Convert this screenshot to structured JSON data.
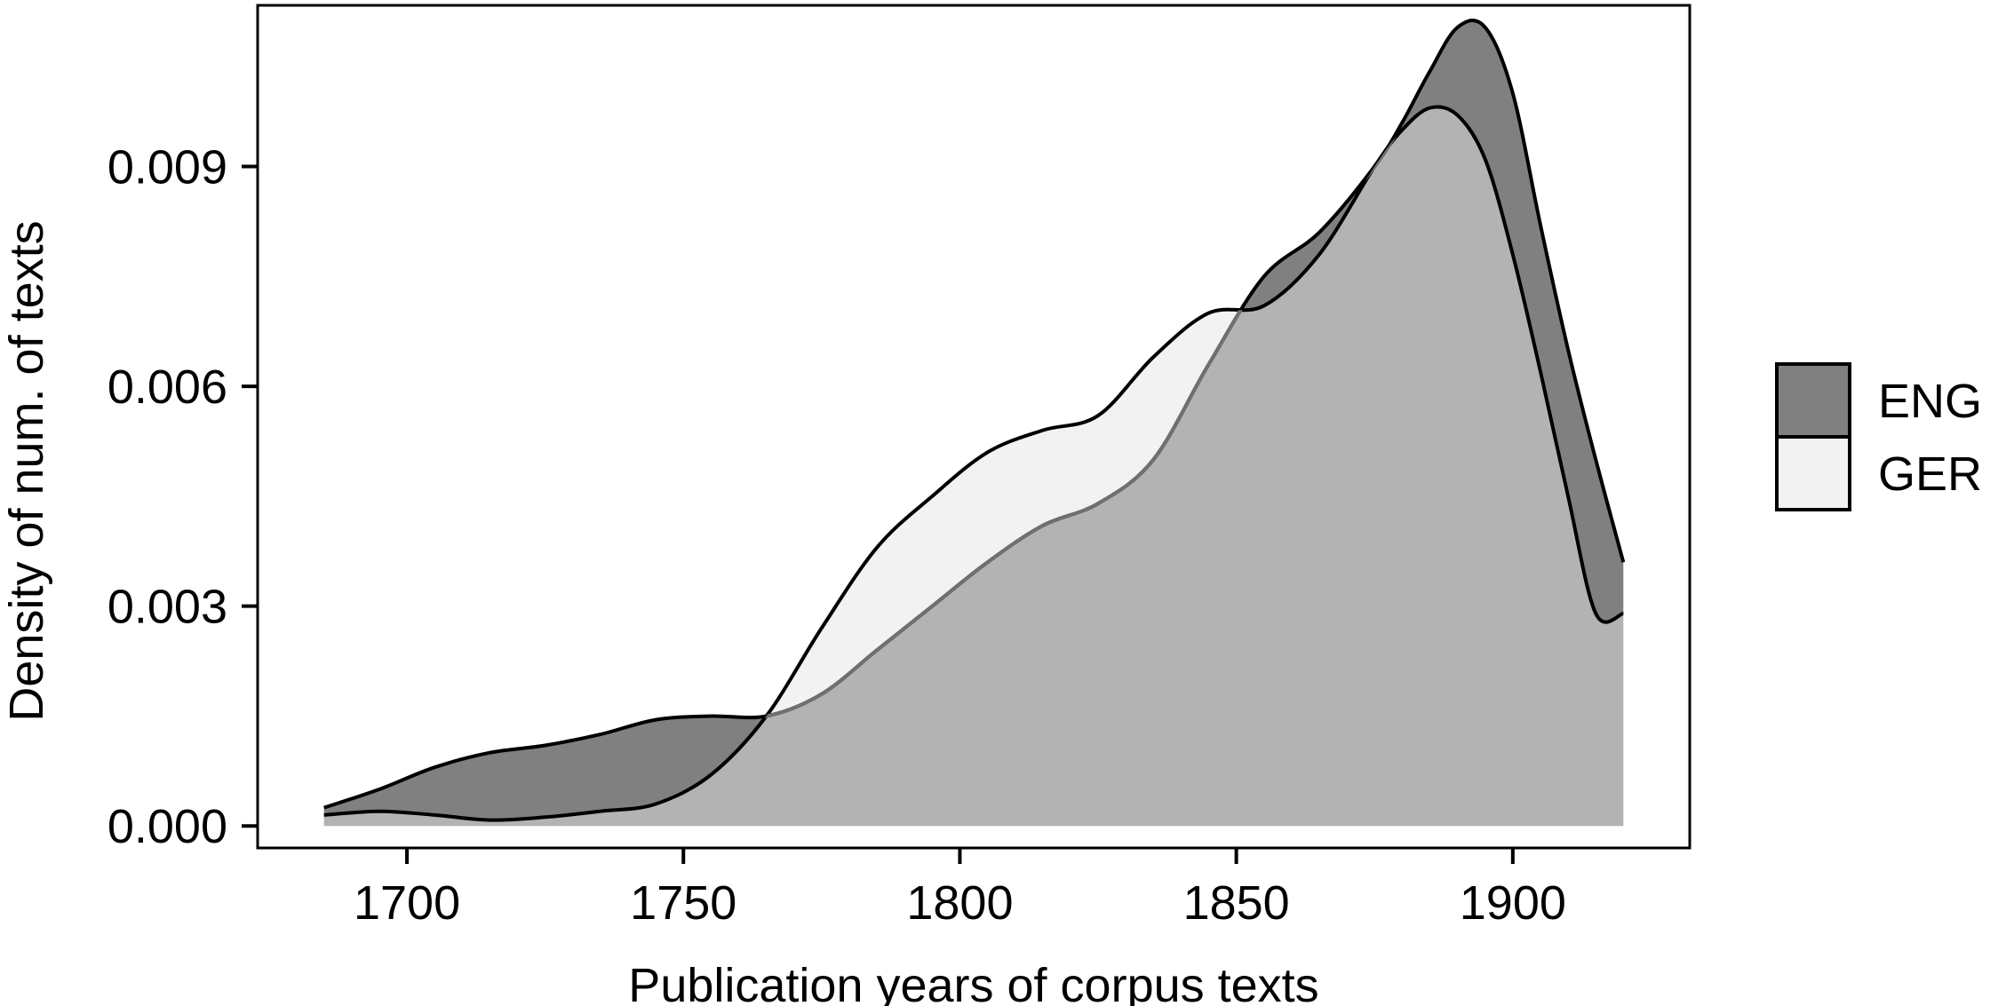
{
  "chart_data": {
    "type": "area",
    "title": "",
    "xlabel": "Publication years of corpus texts",
    "ylabel": "Density of num. of texts",
    "xlim": [
      1673,
      1932
    ],
    "ylim": [
      -0.0003,
      0.0112
    ],
    "x_ticks": [
      {
        "value": 1700,
        "label": "1700"
      },
      {
        "value": 1750,
        "label": "1750"
      },
      {
        "value": 1800,
        "label": "1800"
      },
      {
        "value": 1850,
        "label": "1850"
      },
      {
        "value": 1900,
        "label": "1900"
      }
    ],
    "y_ticks": [
      {
        "value": 0.0,
        "label": "0.000"
      },
      {
        "value": 0.003,
        "label": "0.003"
      },
      {
        "value": 0.006,
        "label": "0.006"
      },
      {
        "value": 0.009,
        "label": "0.009"
      }
    ],
    "grid": false,
    "legend": {
      "position": "right",
      "entries": [
        {
          "name": "ENG",
          "color": "#808080"
        },
        {
          "name": "GER",
          "color": "#f2f2f2"
        }
      ]
    },
    "colors": {
      "overlap": "#b3b3b3",
      "outline": "#000000",
      "overlap_edge": "#707070"
    },
    "series": [
      {
        "name": "ENG",
        "color": "#808080",
        "x": [
          1685,
          1695,
          1705,
          1715,
          1725,
          1735,
          1745,
          1755,
          1765,
          1775,
          1785,
          1795,
          1805,
          1815,
          1825,
          1835,
          1845,
          1855,
          1865,
          1875,
          1880,
          1885,
          1890,
          1895,
          1900,
          1905,
          1910,
          1915,
          1920
        ],
        "y": [
          0.00025,
          0.0005,
          0.0008,
          0.001,
          0.0011,
          0.00125,
          0.00145,
          0.0015,
          0.0015,
          0.0018,
          0.0024,
          0.003,
          0.0036,
          0.0041,
          0.0044,
          0.005,
          0.0063,
          0.0075,
          0.0081,
          0.009,
          0.0096,
          0.0103,
          0.0109,
          0.0109,
          0.01,
          0.0082,
          0.0065,
          0.005,
          0.0036
        ]
      },
      {
        "name": "GER",
        "color": "#f2f2f2",
        "x": [
          1685,
          1695,
          1705,
          1715,
          1725,
          1735,
          1745,
          1755,
          1765,
          1775,
          1785,
          1795,
          1805,
          1815,
          1825,
          1835,
          1845,
          1855,
          1865,
          1875,
          1880,
          1885,
          1890,
          1895,
          1900,
          1905,
          1910,
          1915,
          1920
        ],
        "y": [
          0.00015,
          0.0002,
          0.00015,
          8e-05,
          0.00012,
          0.0002,
          0.0003,
          0.0007,
          0.0015,
          0.0027,
          0.0038,
          0.0045,
          0.0051,
          0.0054,
          0.0056,
          0.0064,
          0.007,
          0.0071,
          0.0078,
          0.009,
          0.0095,
          0.0098,
          0.0097,
          0.0091,
          0.0078,
          0.0062,
          0.0045,
          0.0029,
          0.0029
        ]
      }
    ]
  }
}
